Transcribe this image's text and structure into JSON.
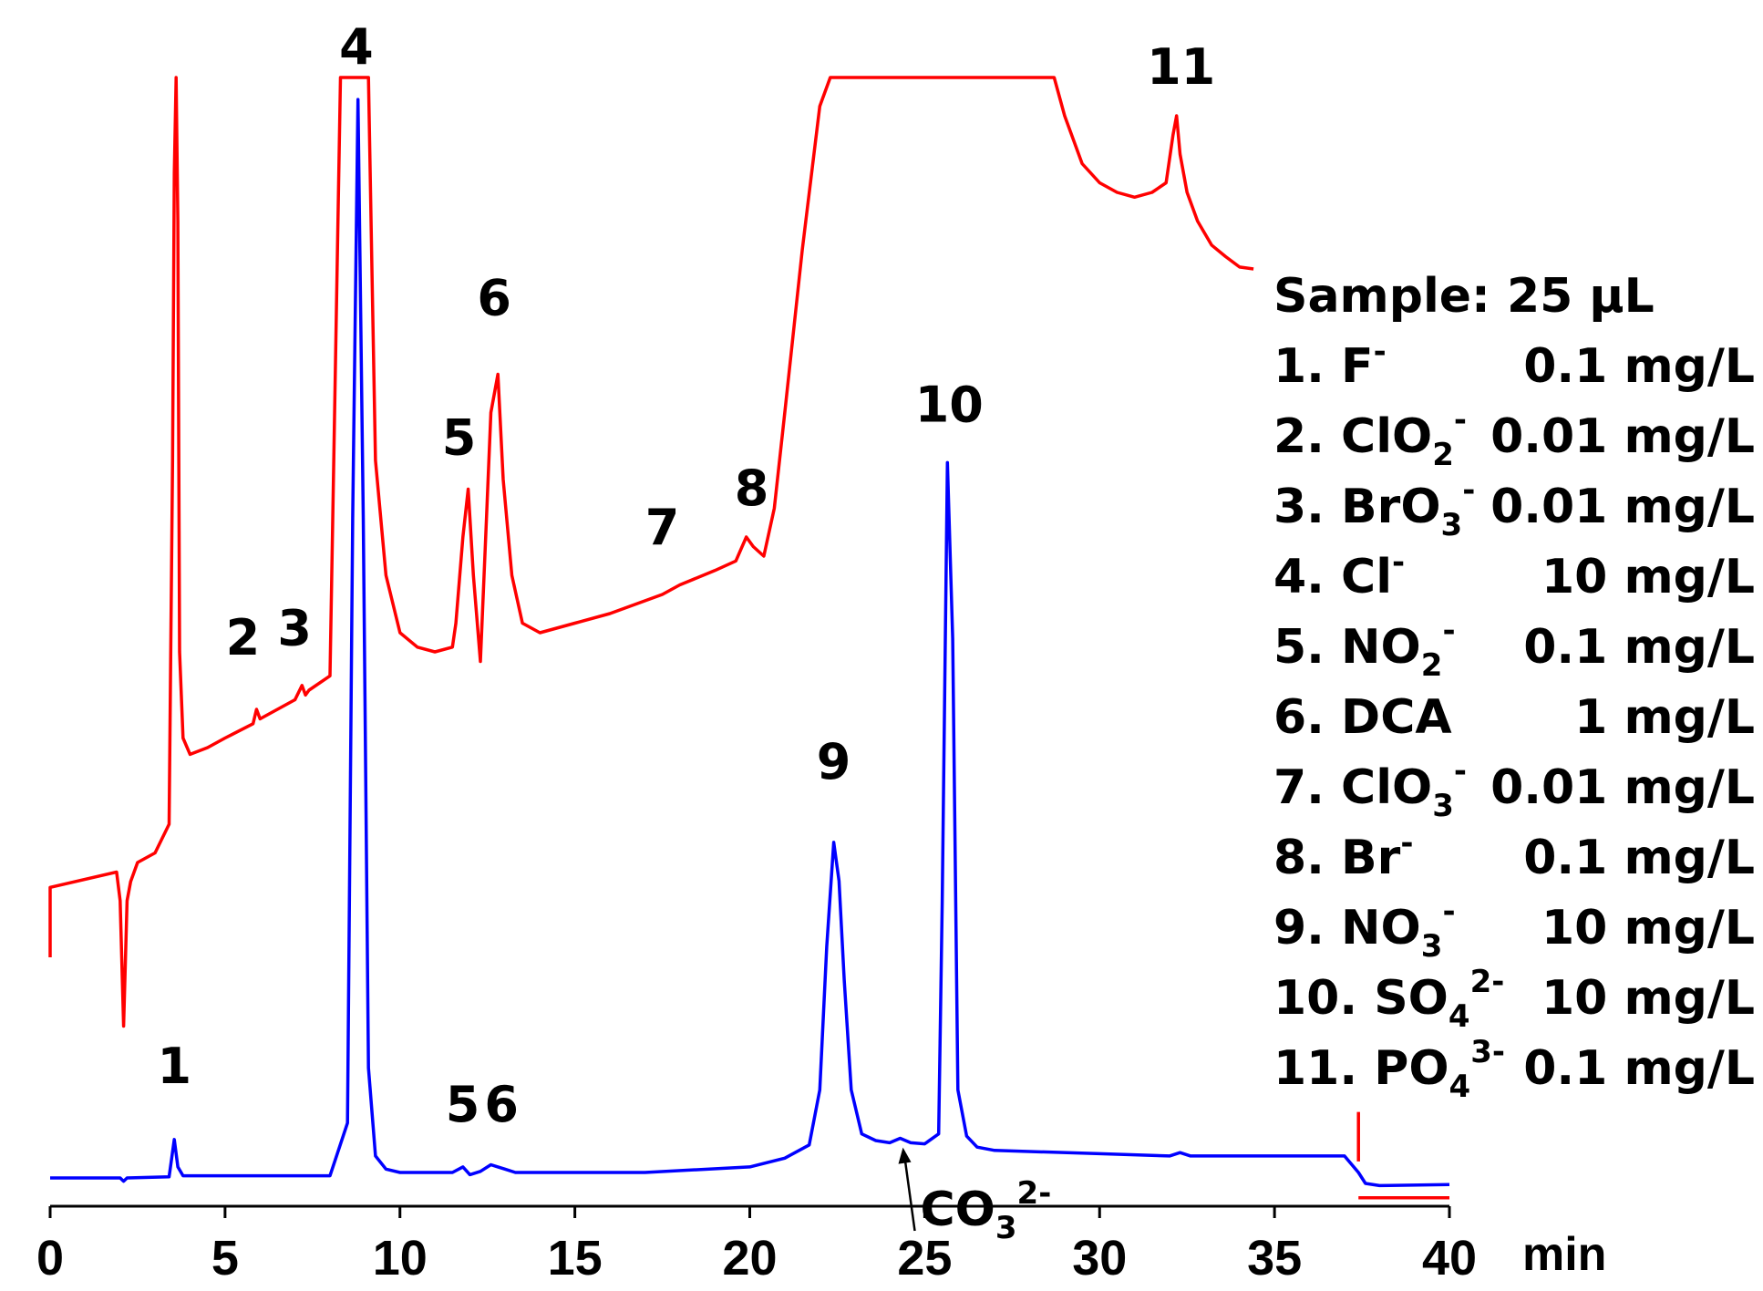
{
  "chart_data": {
    "type": "line",
    "title": "",
    "xlabel": "min",
    "ylabel": "",
    "xlim": [
      0,
      40
    ],
    "x_ticks": [
      "0",
      "5",
      "10",
      "15",
      "20",
      "25",
      "30",
      "35",
      "40"
    ],
    "grid": false,
    "legend_position": "right",
    "series": [
      {
        "color": "#ff0000",
        "x": [
          0,
          0,
          1.9,
          2.0,
          2.1,
          2.2,
          2.3,
          2.5,
          3.0,
          3.4,
          3.5,
          3.55,
          3.6,
          3.65,
          3.7,
          3.8,
          4.0,
          4.5,
          5.0,
          5.8,
          5.9,
          6.0,
          6.1,
          7.0,
          7.2,
          7.3,
          7.4,
          8.0,
          8.3,
          8.4,
          8.6,
          9.1,
          9.2,
          9.3,
          9.6,
          10.0,
          10.5,
          11.0,
          11.5,
          11.6,
          11.8,
          11.95,
          12.1,
          12.3,
          12.45,
          12.6,
          12.8,
          12.95,
          13.2,
          13.5,
          14.0,
          15.0,
          16.0,
          17.5,
          18.0,
          19.0,
          19.6,
          19.9,
          20.1,
          20.4,
          20.7,
          21.0,
          21.5,
          22.0,
          22.3,
          22.5,
          25.0,
          28.7,
          29.0,
          29.5,
          30.0,
          30.5,
          31.0,
          31.5,
          31.9,
          32.1,
          32.2,
          32.3,
          32.5,
          32.8,
          33.2,
          33.6,
          34.0,
          34.4
        ],
        "values": [
          8.1,
          15.4,
          17.0,
          14.0,
          0.9,
          14.0,
          16.0,
          18.0,
          19.0,
          22.0,
          60.0,
          90.0,
          100.0,
          85.0,
          40.0,
          31.0,
          29.3,
          30.0,
          31.0,
          32.5,
          34.0,
          33.0,
          33.2,
          35.0,
          36.5,
          35.5,
          36.0,
          37.5,
          100.0,
          100.0,
          100.0,
          100.0,
          80.0,
          60.0,
          48.0,
          42.0,
          40.5,
          40.0,
          40.5,
          43.0,
          52.0,
          57.0,
          48.0,
          39.0,
          52.0,
          65.0,
          69.0,
          58.0,
          48.0,
          43.0,
          42.0,
          43.0,
          44.0,
          46.0,
          47.0,
          48.5,
          49.5,
          52.0,
          51.0,
          50.0,
          55.0,
          65.0,
          82.0,
          97.0,
          100.0,
          100.0,
          100.0,
          100.0,
          96.0,
          91.0,
          89.0,
          88.0,
          87.5,
          88.0,
          89.0,
          94.0,
          96.0,
          92.0,
          88.0,
          85.0,
          82.5,
          81.3,
          80.2,
          80.0
        ]
      },
      {
        "color": "#0000ff",
        "x": [
          0,
          2.0,
          2.1,
          2.2,
          3.4,
          3.55,
          3.65,
          3.8,
          8.0,
          8.5,
          8.65,
          8.8,
          8.95,
          9.1,
          9.3,
          9.6,
          10.0,
          11.0,
          11.5,
          11.8,
          12.0,
          12.3,
          12.6,
          12.8,
          13.0,
          13.3,
          14.0,
          17.0,
          20.0,
          21.0,
          21.7,
          22.0,
          22.2,
          22.4,
          22.55,
          22.7,
          22.9,
          23.2,
          23.6,
          24.0,
          24.3,
          24.6,
          25.0,
          25.4,
          25.5,
          25.65,
          25.8,
          25.95,
          26.2,
          26.5,
          27.0,
          30.0,
          32.0,
          32.3,
          32.6,
          35.0,
          37.0,
          37.4,
          37.6,
          38.0,
          40.0
        ],
        "values": [
          0.0,
          0.0,
          -0.3,
          0.0,
          0.1,
          3.5,
          1.0,
          0.2,
          0.2,
          5.0,
          60.0,
          98.0,
          60.0,
          10.0,
          2.0,
          0.8,
          0.5,
          0.5,
          0.5,
          1.0,
          0.3,
          0.6,
          1.2,
          1.0,
          0.8,
          0.5,
          0.5,
          0.5,
          1.0,
          1.8,
          3.0,
          8.0,
          21.0,
          30.5,
          27.0,
          18.0,
          8.0,
          4.0,
          3.4,
          3.2,
          3.6,
          3.2,
          3.1,
          4.0,
          25.0,
          65.0,
          49.0,
          8.0,
          3.8,
          2.8,
          2.5,
          2.2,
          2.0,
          2.3,
          2.0,
          2.0,
          2.0,
          0.5,
          -0.5,
          -0.7,
          -0.6
        ]
      }
    ],
    "peak_labels": [
      {
        "text": "1",
        "x": 3.55,
        "series": 1
      },
      {
        "text": "2",
        "x": 5.9,
        "series": 0
      },
      {
        "text": "3",
        "x": 7.3,
        "series": 0
      },
      {
        "text": "4",
        "x": 8.7,
        "series": 0
      },
      {
        "text": "5",
        "x": 11.95,
        "series": 0
      },
      {
        "text": "6",
        "x": 12.8,
        "series": 0
      },
      {
        "text": "7",
        "x": 17.5,
        "series": 0
      },
      {
        "text": "8",
        "x": 20.0,
        "series": 0
      },
      {
        "text": "5",
        "x": 11.95,
        "series": 1
      },
      {
        "text": "6",
        "x": 12.8,
        "series": 1
      },
      {
        "text": "9",
        "x": 22.4,
        "series": 1
      },
      {
        "text": "10",
        "x": 25.65,
        "series": 1
      },
      {
        "text": "11",
        "x": 32.2,
        "series": 0
      }
    ],
    "annotation": {
      "text": "CO",
      "sub": "3",
      "sup": "2-",
      "x": 24.3
    }
  },
  "legend": {
    "sample": "Sample: 25 µL",
    "items": [
      {
        "name": "1. F",
        "sub": "",
        "sup": "-",
        "conc": "0.1 mg/L"
      },
      {
        "name": "2. ClO",
        "sub": "2",
        "sup": "-",
        "conc": "0.01 mg/L"
      },
      {
        "name": "3. BrO",
        "sub": "3",
        "sup": "-",
        "conc": "0.01 mg/L"
      },
      {
        "name": "4. Cl",
        "sub": "",
        "sup": "-",
        "conc": "10 mg/L"
      },
      {
        "name": "5. NO",
        "sub": "2",
        "sup": "-",
        "conc": "0.1 mg/L"
      },
      {
        "name": "6. DCA",
        "sub": "",
        "sup": "",
        "conc": "1 mg/L"
      },
      {
        "name": "7. ClO",
        "sub": "3",
        "sup": "-",
        "conc": "0.01 mg/L"
      },
      {
        "name": "8. Br",
        "sub": "",
        "sup": "-",
        "conc": "0.1 mg/L"
      },
      {
        "name": "9. NO",
        "sub": "3",
        "sup": "-",
        "conc": "10 mg/L"
      },
      {
        "name": "10. SO",
        "sub": "4",
        "sup": "2-",
        "conc": "10 mg/L"
      },
      {
        "name": "11. PO",
        "sub": "4",
        "sup": "3-",
        "conc": "0.1 mg/L"
      }
    ]
  }
}
